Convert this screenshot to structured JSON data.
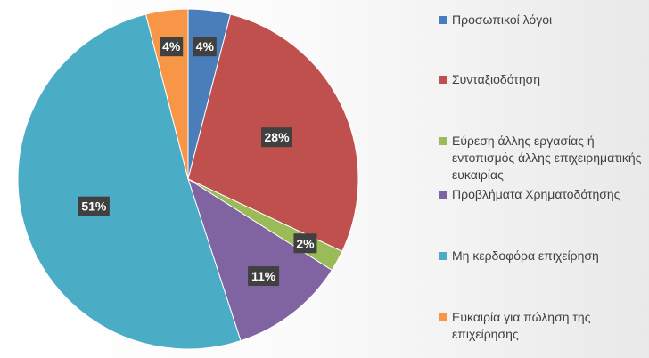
{
  "chart_data": {
    "type": "pie",
    "title": "",
    "categories": [
      "Προσωπικοί λόγοι",
      "Συνταξιοδότηση",
      "Εύρεση άλλης εργασίας ή εντοπισμός άλλης επιχειρηματικής ευκαιρίας",
      "Προβλήματα Χρηματοδότησης",
      "Μη κερδοφόρα επιχείρηση",
      "Ευκαιρία για πώληση της επιχείρησης"
    ],
    "values": [
      4,
      28,
      2,
      11,
      51,
      4
    ],
    "data_labels": [
      "4%",
      "28%",
      "2%",
      "11%",
      "51%",
      "4%"
    ],
    "colors": [
      "#4a7ebb",
      "#c0504d",
      "#9bbb59",
      "#8064a2",
      "#4bacc6",
      "#f79646"
    ],
    "legend_position": "right",
    "start_angle": "top, clockwise"
  }
}
